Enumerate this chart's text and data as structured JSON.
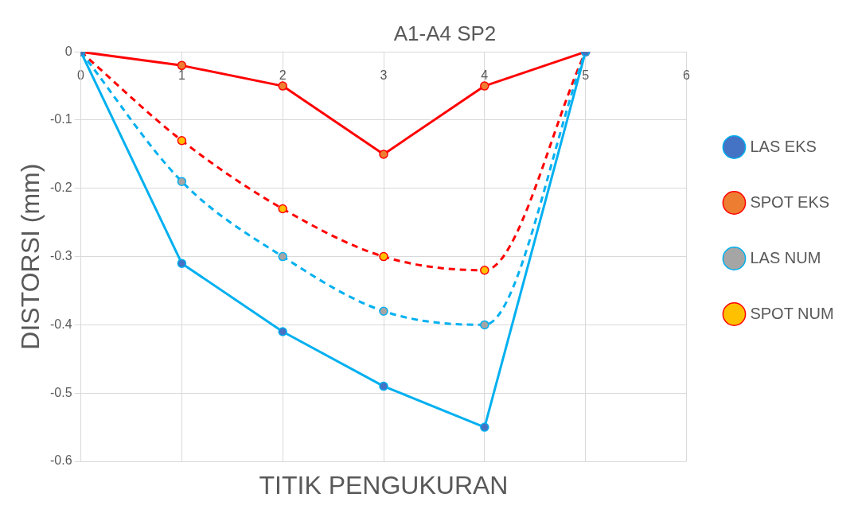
{
  "chart_data": {
    "type": "line",
    "title": "A1-A4 SP2",
    "xlabel": "TITIK PENGUKURAN",
    "ylabel": "DISTORSI (mm)",
    "x": [
      0,
      1,
      2,
      3,
      4,
      5
    ],
    "series": [
      {
        "name": "LAS EKS",
        "color": "#00b0f0",
        "colors": [
          "#4472c4",
          "#4472c4",
          "#4472c4",
          "#4472c4",
          "#4472c4",
          "#4472c4"
        ],
        "line_style": "solid",
        "values": [
          0,
          -0.31,
          -0.41,
          -0.49,
          -0.55,
          0
        ]
      },
      {
        "name": "SPOT EKS",
        "color": "#ff0000",
        "colors": [
          "#ed7d31",
          "#ed7d31",
          "#ed7d31",
          "#ed7d31",
          "#ed7d31",
          "#ed7d31"
        ],
        "line_style": "solid",
        "values": [
          0,
          -0.02,
          -0.05,
          -0.15,
          -0.05,
          0
        ]
      },
      {
        "name": "LAS NUM",
        "color": "#00b0f0",
        "colors": [
          "#a5a5a5",
          "#a5a5a5",
          "#a5a5a5",
          "#a5a5a5",
          "#a5a5a5",
          "#a5a5a5"
        ],
        "line_style": "dashed",
        "values": [
          0,
          -0.19,
          -0.3,
          -0.38,
          -0.4,
          0
        ]
      },
      {
        "name": "SPOT NUM",
        "color": "#ff0000",
        "colors": [
          "#ffc000",
          "#ffc000",
          "#ffc000",
          "#ffc000",
          "#ffc000",
          "#ffc000"
        ],
        "line_style": "dashed",
        "values": [
          0,
          -0.13,
          -0.23,
          -0.3,
          -0.32,
          0
        ]
      }
    ],
    "xlim": [
      0,
      6
    ],
    "xticks": [
      0,
      1,
      2,
      3,
      4,
      5,
      6
    ],
    "ylim": [
      -0.6,
      0
    ],
    "yticks": [
      0,
      -0.1,
      -0.2,
      -0.3,
      -0.4,
      -0.5,
      -0.6
    ],
    "grid": true,
    "legend": "right",
    "marker": "circle"
  }
}
